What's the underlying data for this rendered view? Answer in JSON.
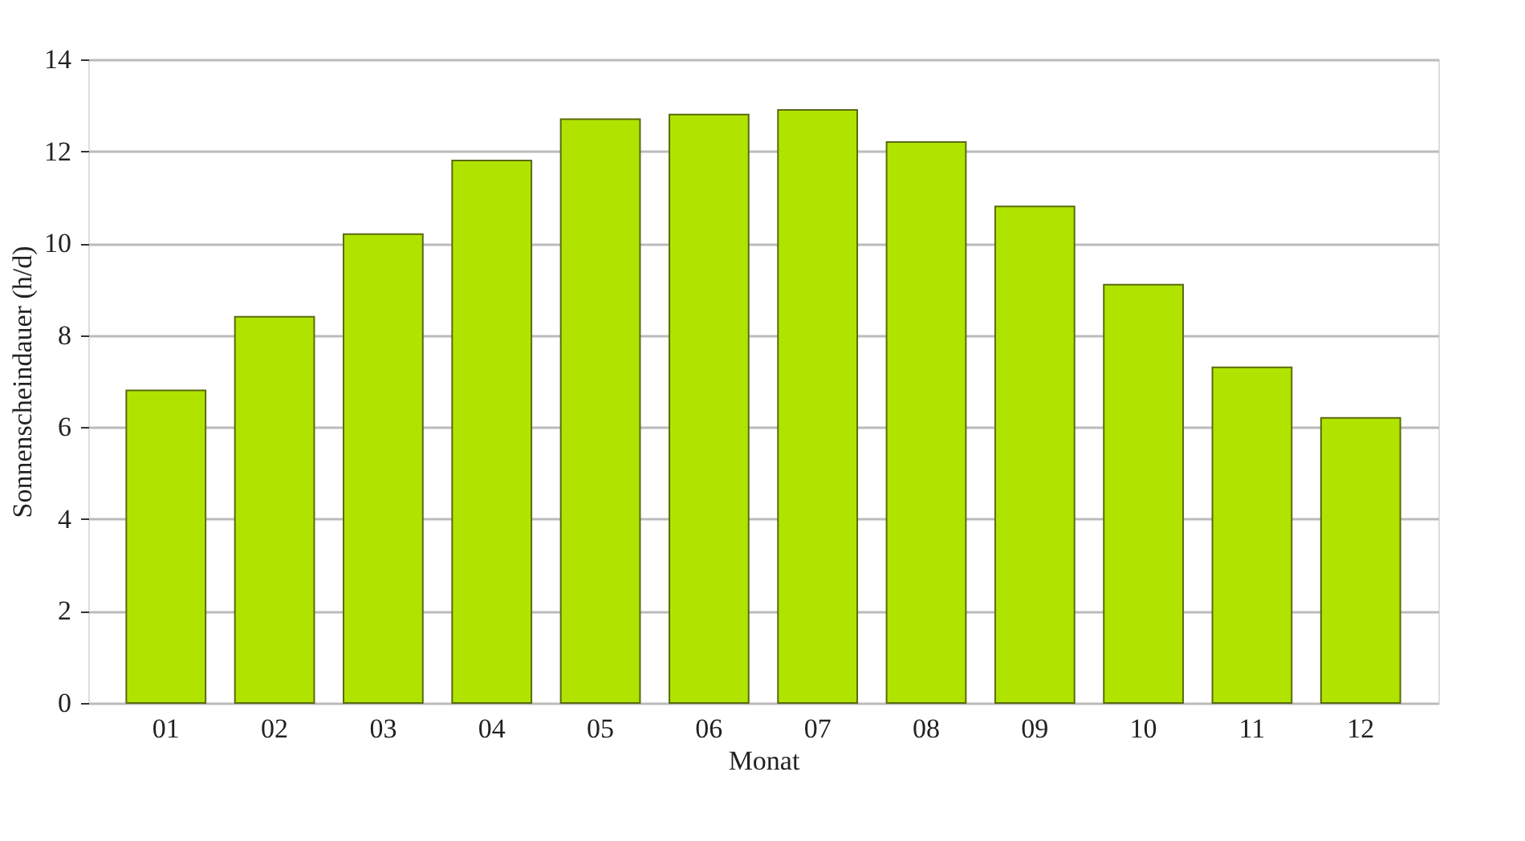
{
  "chart_data": {
    "type": "bar",
    "xlabel": "Monat",
    "ylabel": "Sonnenscheindauer (h/d)",
    "categories": [
      "01",
      "02",
      "03",
      "04",
      "05",
      "06",
      "07",
      "08",
      "09",
      "10",
      "11",
      "12"
    ],
    "values": [
      6.8,
      8.4,
      10.2,
      11.8,
      12.7,
      12.8,
      12.9,
      12.2,
      10.8,
      9.1,
      7.3,
      6.2
    ],
    "color": "#b0e400",
    "ylim": [
      0,
      14
    ],
    "yticks": [
      0,
      2,
      4,
      6,
      8,
      10,
      12,
      14
    ],
    "grid": "y",
    "legend": false
  }
}
